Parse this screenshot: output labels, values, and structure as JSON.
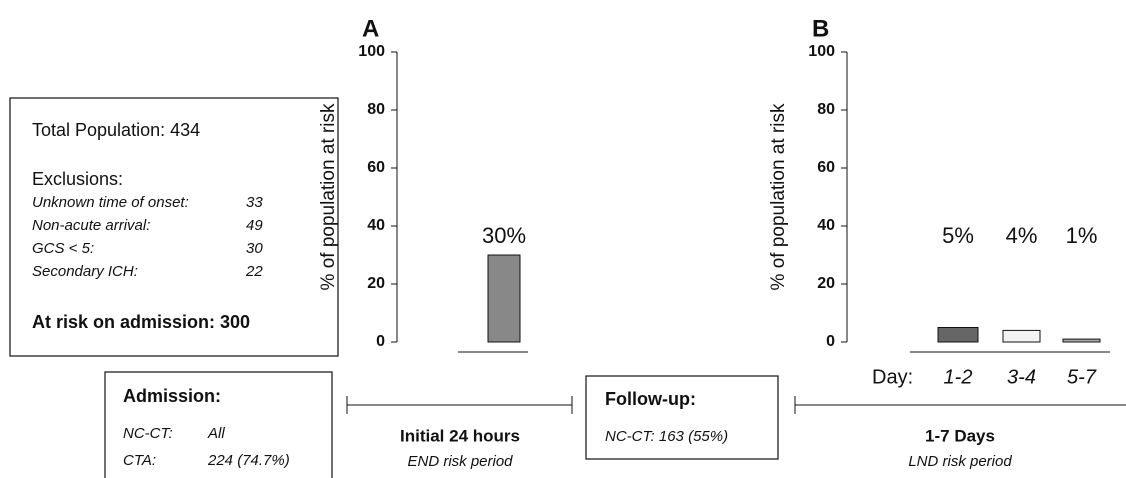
{
  "chart_data": [
    {
      "type": "bar",
      "title": "A",
      "ylabel": "% of population at risk",
      "categories": [
        null
      ],
      "values": [
        30
      ],
      "value_labels": [
        "30%"
      ],
      "colors": [
        "#888888"
      ],
      "ylim": [
        0,
        100
      ],
      "yticks": [
        0,
        20,
        40,
        60,
        80,
        100
      ]
    },
    {
      "type": "bar",
      "title": "B",
      "ylabel": "% of population at risk",
      "xlabel": "Day:",
      "categories": [
        "1-2",
        "3-4",
        "5-7"
      ],
      "values": [
        5,
        4,
        1
      ],
      "value_labels": [
        "5%",
        "4%",
        "1%"
      ],
      "colors": [
        "#666666",
        "#f2f2f2",
        "#aaaaaa"
      ],
      "ylim": [
        0,
        100
      ],
      "yticks": [
        0,
        20,
        40,
        60,
        80,
        100
      ]
    }
  ],
  "population_box": {
    "title": "Total Population: 434",
    "exclusions_heading": "Exclusions:",
    "exclusions": [
      {
        "label": "Unknown time of onset:",
        "count": 33
      },
      {
        "label": "Non-acute arrival:",
        "count": 49
      },
      {
        "label": "GCS < 5:",
        "count": 30
      },
      {
        "label": "Secondary ICH:",
        "count": 22
      }
    ],
    "at_risk": "At risk on admission: 300"
  },
  "admission": {
    "title": "Admission:",
    "rows": [
      [
        "NC-CT:",
        "All"
      ],
      [
        "CTA:",
        "224 (74.7%)"
      ]
    ]
  },
  "follow_up": {
    "title": "Follow-up:",
    "text": "NC-CT: 163 (55%)"
  },
  "periods": [
    {
      "title": "Initial 24 hours",
      "subtitle": "END risk period"
    },
    {
      "title": "1-7 Days",
      "subtitle": "LND risk period"
    }
  ]
}
